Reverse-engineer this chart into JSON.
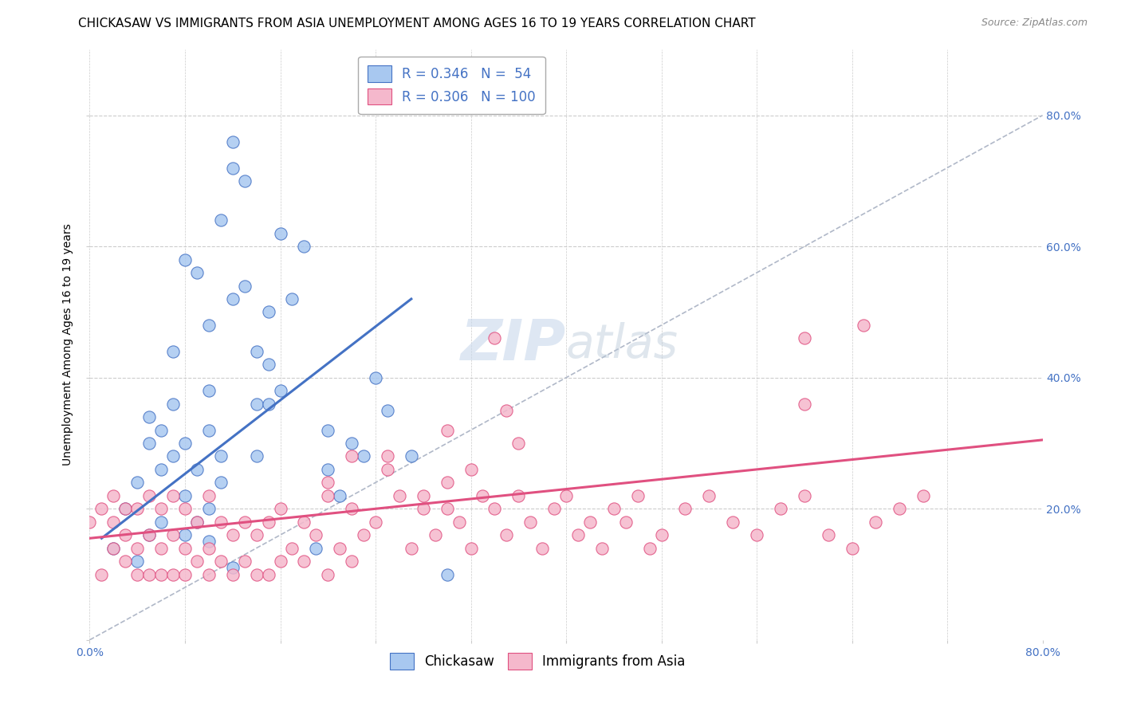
{
  "title": "CHICKASAW VS IMMIGRANTS FROM ASIA UNEMPLOYMENT AMONG AGES 16 TO 19 YEARS CORRELATION CHART",
  "source": "Source: ZipAtlas.com",
  "ylabel": "Unemployment Among Ages 16 to 19 years",
  "xmin": 0.0,
  "xmax": 0.8,
  "ymin": 0.0,
  "ymax": 0.9,
  "chickasaw_color": "#a8c8f0",
  "immigrants_color": "#f5b8cc",
  "chickasaw_line_color": "#4472c4",
  "immigrants_line_color": "#e05080",
  "diagonal_color": "#b0b8c8",
  "legend_R_chickasaw": "R = 0.346",
  "legend_N_chickasaw": "N =  54",
  "legend_R_immigrants": "R = 0.306",
  "legend_N_immigrants": "N = 100",
  "chickasaw_scatter_x": [
    0.02,
    0.03,
    0.04,
    0.04,
    0.05,
    0.05,
    0.06,
    0.06,
    0.07,
    0.07,
    0.08,
    0.08,
    0.09,
    0.09,
    0.1,
    0.1,
    0.1,
    0.11,
    0.11,
    0.12,
    0.12,
    0.13,
    0.14,
    0.14,
    0.15,
    0.15,
    0.16,
    0.17,
    0.18,
    0.19,
    0.2,
    0.2,
    0.21,
    0.22,
    0.23,
    0.24,
    0.25,
    0.27,
    0.3,
    0.1,
    0.15,
    0.07,
    0.12,
    0.08,
    0.13,
    0.09,
    0.11,
    0.14,
    0.16,
    0.05,
    0.06,
    0.08,
    0.1,
    0.12
  ],
  "chickasaw_scatter_y": [
    0.14,
    0.2,
    0.12,
    0.24,
    0.3,
    0.34,
    0.26,
    0.32,
    0.28,
    0.36,
    0.22,
    0.3,
    0.18,
    0.26,
    0.2,
    0.32,
    0.38,
    0.24,
    0.28,
    0.72,
    0.76,
    0.7,
    0.28,
    0.36,
    0.42,
    0.36,
    0.62,
    0.52,
    0.6,
    0.14,
    0.26,
    0.32,
    0.22,
    0.3,
    0.28,
    0.4,
    0.35,
    0.28,
    0.1,
    0.48,
    0.5,
    0.44,
    0.52,
    0.58,
    0.54,
    0.56,
    0.64,
    0.44,
    0.38,
    0.16,
    0.18,
    0.16,
    0.15,
    0.11
  ],
  "immigrants_scatter_x": [
    0.0,
    0.01,
    0.01,
    0.02,
    0.02,
    0.02,
    0.03,
    0.03,
    0.03,
    0.04,
    0.04,
    0.04,
    0.05,
    0.05,
    0.05,
    0.06,
    0.06,
    0.06,
    0.07,
    0.07,
    0.07,
    0.08,
    0.08,
    0.08,
    0.09,
    0.09,
    0.1,
    0.1,
    0.1,
    0.11,
    0.11,
    0.12,
    0.12,
    0.13,
    0.13,
    0.14,
    0.14,
    0.15,
    0.15,
    0.16,
    0.16,
    0.17,
    0.18,
    0.18,
    0.19,
    0.2,
    0.2,
    0.21,
    0.22,
    0.22,
    0.23,
    0.24,
    0.25,
    0.26,
    0.27,
    0.28,
    0.29,
    0.3,
    0.31,
    0.32,
    0.33,
    0.34,
    0.35,
    0.36,
    0.37,
    0.38,
    0.39,
    0.4,
    0.41,
    0.42,
    0.43,
    0.44,
    0.45,
    0.46,
    0.47,
    0.48,
    0.5,
    0.52,
    0.54,
    0.56,
    0.58,
    0.6,
    0.62,
    0.64,
    0.66,
    0.68,
    0.7,
    0.6,
    0.65,
    0.6,
    0.3,
    0.32,
    0.34,
    0.35,
    0.36,
    0.2,
    0.22,
    0.25,
    0.28,
    0.3
  ],
  "immigrants_scatter_y": [
    0.18,
    0.1,
    0.2,
    0.14,
    0.18,
    0.22,
    0.12,
    0.16,
    0.2,
    0.1,
    0.14,
    0.2,
    0.1,
    0.16,
    0.22,
    0.1,
    0.14,
    0.2,
    0.1,
    0.16,
    0.22,
    0.1,
    0.14,
    0.2,
    0.12,
    0.18,
    0.1,
    0.14,
    0.22,
    0.12,
    0.18,
    0.1,
    0.16,
    0.12,
    0.18,
    0.1,
    0.16,
    0.1,
    0.18,
    0.12,
    0.2,
    0.14,
    0.12,
    0.18,
    0.16,
    0.1,
    0.22,
    0.14,
    0.12,
    0.2,
    0.16,
    0.18,
    0.28,
    0.22,
    0.14,
    0.2,
    0.16,
    0.24,
    0.18,
    0.14,
    0.22,
    0.2,
    0.16,
    0.22,
    0.18,
    0.14,
    0.2,
    0.22,
    0.16,
    0.18,
    0.14,
    0.2,
    0.18,
    0.22,
    0.14,
    0.16,
    0.2,
    0.22,
    0.18,
    0.16,
    0.2,
    0.22,
    0.16,
    0.14,
    0.18,
    0.2,
    0.22,
    0.46,
    0.48,
    0.36,
    0.32,
    0.26,
    0.46,
    0.35,
    0.3,
    0.24,
    0.28,
    0.26,
    0.22,
    0.2
  ],
  "chickasaw_line_x": [
    0.01,
    0.27
  ],
  "chickasaw_line_y": [
    0.155,
    0.52
  ],
  "immigrants_line_x": [
    0.0,
    0.8
  ],
  "immigrants_line_y": [
    0.155,
    0.305
  ],
  "diagonal_line_x": [
    0.0,
    0.8
  ],
  "diagonal_line_y": [
    0.0,
    0.8
  ],
  "watermark_zip": "ZIP",
  "watermark_atlas": "atlas",
  "background_color": "#ffffff",
  "grid_color": "#cccccc",
  "title_fontsize": 11,
  "source_fontsize": 9,
  "label_fontsize": 10,
  "tick_fontsize": 10,
  "legend_fontsize": 12
}
